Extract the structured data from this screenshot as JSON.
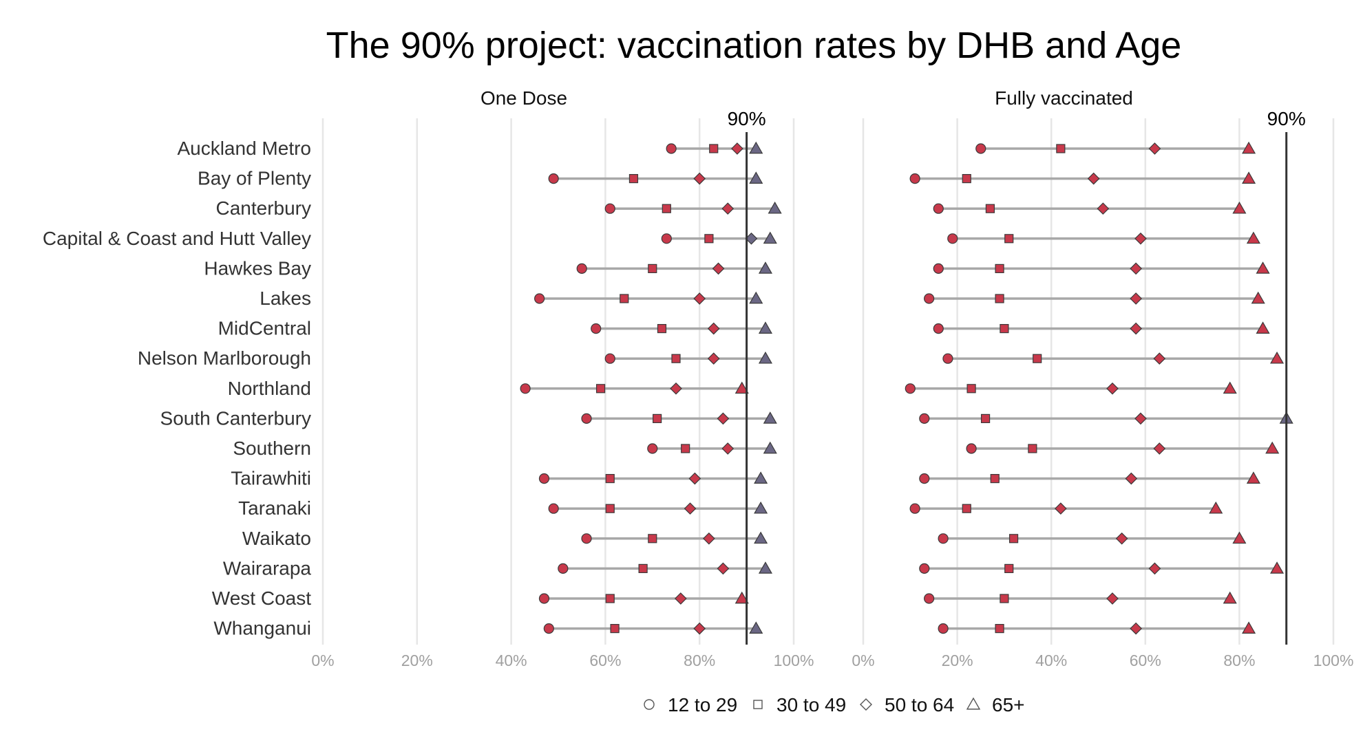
{
  "chart_data": {
    "type": "scatter",
    "title": "The 90% project: vaccination rates by DHB and Age",
    "xlim": [
      0,
      100
    ],
    "x_ticks": [
      "0%",
      "20%",
      "40%",
      "60%",
      "80%",
      "100%"
    ],
    "reference_line": {
      "value": 90,
      "label": "90%"
    },
    "grid": true,
    "legend_position": "bottom",
    "colors": {
      "below_target": "#c8394b",
      "at_target": "#6b6784",
      "connector": "#a8a8a8",
      "reference": "#333333",
      "grid": "#e6e6e6"
    },
    "categories": [
      "Auckland Metro",
      "Bay of Plenty",
      "Canterbury",
      "Capital & Coast and Hutt Valley",
      "Hawkes Bay",
      "Lakes",
      "MidCentral",
      "Nelson Marlborough",
      "Northland",
      "South Canterbury",
      "Southern",
      "Tairawhiti",
      "Taranaki",
      "Waikato",
      "Wairarapa",
      "West Coast",
      "Whanganui"
    ],
    "series_names": [
      "12 to 29",
      "30 to 49",
      "50 to 64",
      "65+"
    ],
    "series_shapes": [
      "circle",
      "square",
      "diamond",
      "triangle"
    ],
    "panels": [
      {
        "title": "One Dose",
        "values": [
          [
            74,
            83,
            88,
            92
          ],
          [
            49,
            66,
            80,
            92
          ],
          [
            61,
            73,
            86,
            96
          ],
          [
            73,
            82,
            91,
            95
          ],
          [
            55,
            70,
            84,
            94
          ],
          [
            46,
            64,
            80,
            92
          ],
          [
            58,
            72,
            83,
            94
          ],
          [
            61,
            75,
            83,
            94
          ],
          [
            43,
            59,
            75,
            89
          ],
          [
            56,
            71,
            85,
            95
          ],
          [
            70,
            77,
            86,
            95
          ],
          [
            47,
            61,
            79,
            93
          ],
          [
            49,
            61,
            78,
            93
          ],
          [
            56,
            70,
            82,
            93
          ],
          [
            51,
            68,
            85,
            94
          ],
          [
            47,
            61,
            76,
            89
          ],
          [
            48,
            62,
            80,
            92
          ]
        ]
      },
      {
        "title": "Fully vaccinated",
        "values": [
          [
            25,
            42,
            62,
            82
          ],
          [
            11,
            22,
            49,
            82
          ],
          [
            16,
            27,
            51,
            80
          ],
          [
            19,
            31,
            59,
            83
          ],
          [
            16,
            29,
            58,
            85
          ],
          [
            14,
            29,
            58,
            84
          ],
          [
            16,
            30,
            58,
            85
          ],
          [
            18,
            37,
            63,
            88
          ],
          [
            10,
            23,
            53,
            78
          ],
          [
            13,
            26,
            59,
            90
          ],
          [
            23,
            36,
            63,
            87
          ],
          [
            13,
            28,
            57,
            83
          ],
          [
            11,
            22,
            42,
            75
          ],
          [
            17,
            32,
            55,
            80
          ],
          [
            13,
            31,
            62,
            88
          ],
          [
            14,
            30,
            53,
            78
          ],
          [
            17,
            29,
            58,
            82
          ]
        ]
      }
    ]
  }
}
